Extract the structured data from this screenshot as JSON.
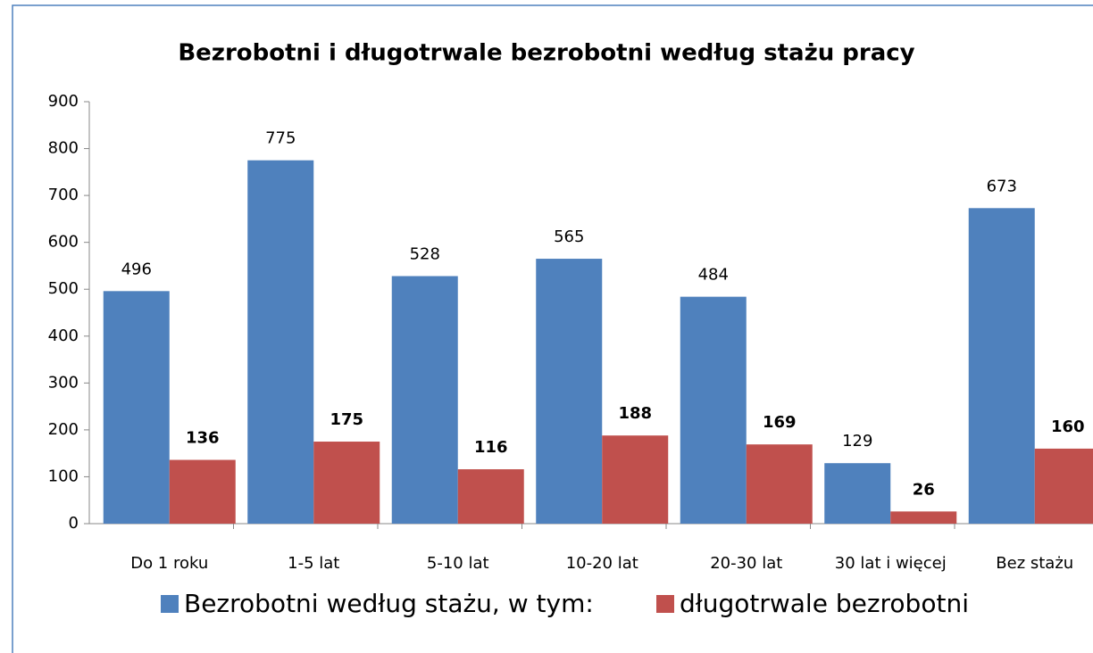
{
  "chart_data": {
    "type": "bar",
    "title": "Bezrobotni i długotrwale bezrobotni według stażu pracy",
    "categories": [
      "Do 1 roku",
      "1-5 lat",
      "5-10 lat",
      "10-20 lat",
      "20-30 lat",
      "30 lat i więcej",
      "Bez stażu"
    ],
    "series": [
      {
        "name": "Bezrobotni według stażu, w tym:",
        "color": "#4f81bd",
        "values": [
          496,
          775,
          528,
          565,
          484,
          129,
          673
        ]
      },
      {
        "name": "długotrwale bezrobotni",
        "color": "#c0504d",
        "values": [
          136,
          175,
          116,
          188,
          169,
          26,
          160
        ]
      }
    ],
    "ylim": [
      0,
      900
    ],
    "yticks": [
      0,
      100,
      200,
      300,
      400,
      500,
      600,
      700,
      800,
      900
    ],
    "grid": false,
    "legend": "bottom"
  }
}
